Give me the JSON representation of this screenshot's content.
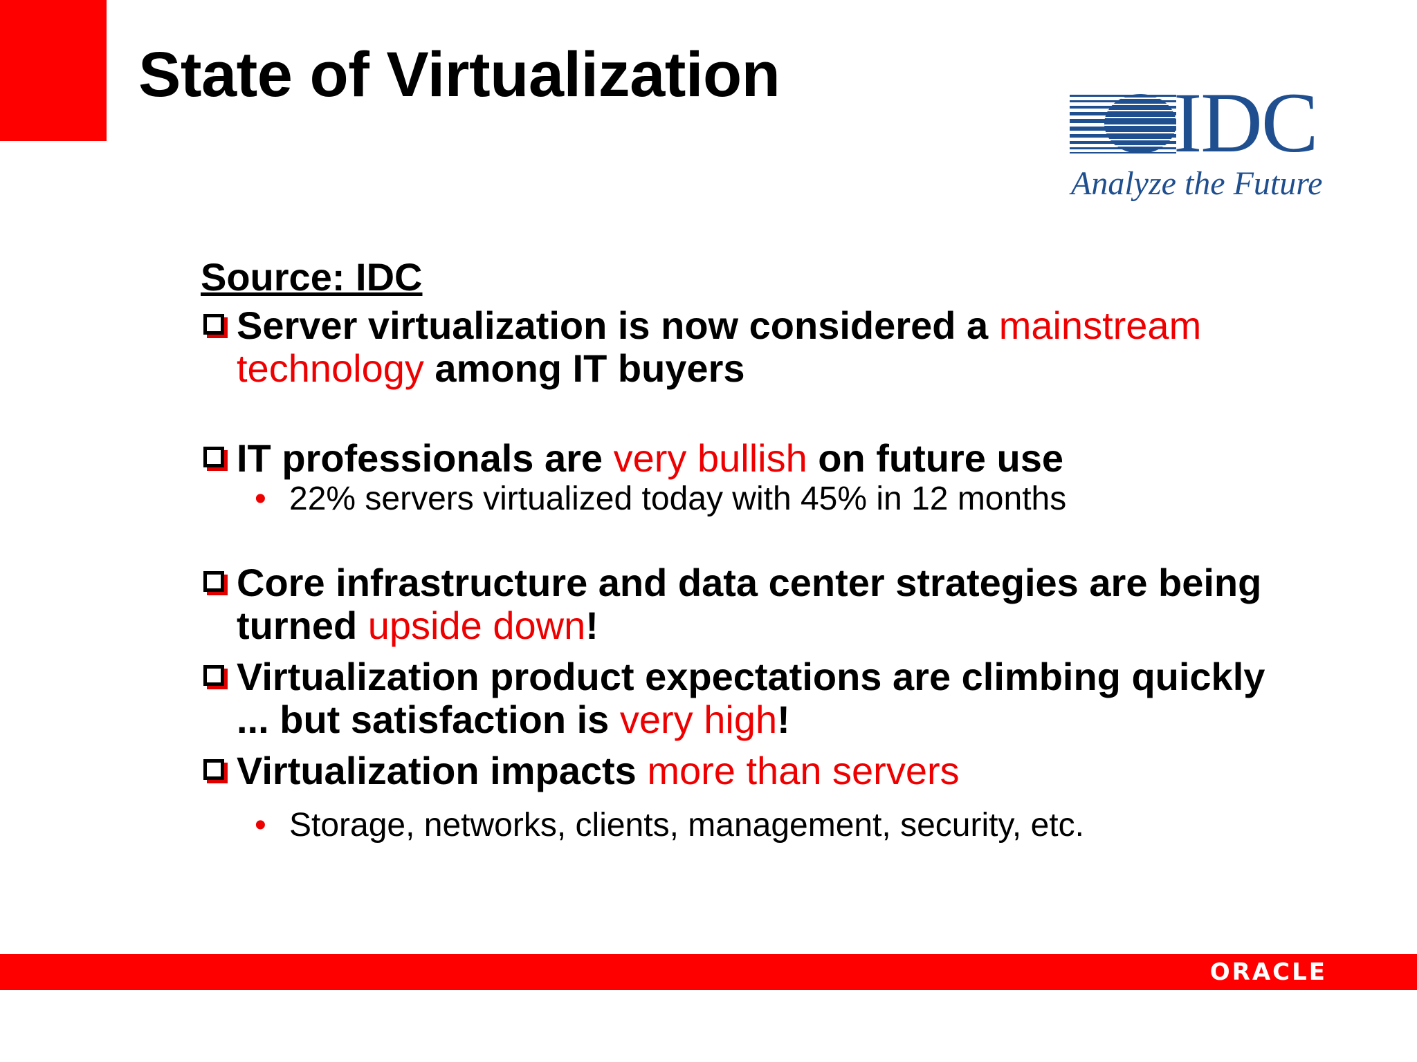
{
  "slide": {
    "title": "State of Virtualization"
  },
  "logos": {
    "idc_wordmark": "IDC",
    "idc_tagline": "Analyze the Future",
    "footer_logo": "ORACLE"
  },
  "content": {
    "source": "Source: IDC",
    "points": [
      {
        "text_a": "Server virtualization is now considered a ",
        "highlight": "mainstream technology",
        "text_b": " among IT buyers"
      },
      {
        "text_a": "IT professionals are ",
        "highlight": "very bullish",
        "text_b": " on future use",
        "sub_bullet": "22% servers virtualized today with 45% in 12 months"
      },
      {
        "text_a": "Core infrastructure and data center strategies are being turned ",
        "highlight": "upside down",
        "text_b": "!"
      },
      {
        "text_a": "Virtualization product expectations are climbing quickly ... but satisfaction is ",
        "highlight": "very high",
        "text_b": "!"
      },
      {
        "text_a": "Virtualization impacts ",
        "highlight": "more than servers",
        "text_b": "",
        "sub_bullet": "Storage, networks, clients, management, security, etc."
      }
    ]
  },
  "colors": {
    "accent_red": "#ff0000",
    "highlight_red": "#ee0000",
    "idc_blue": "#1f4f8f",
    "text": "#000000"
  },
  "icons": {
    "bullet": "checkbox-bullet-icon",
    "sub_bullet": "dot-bullet-icon",
    "idc_mark": "striped-globe-icon"
  }
}
